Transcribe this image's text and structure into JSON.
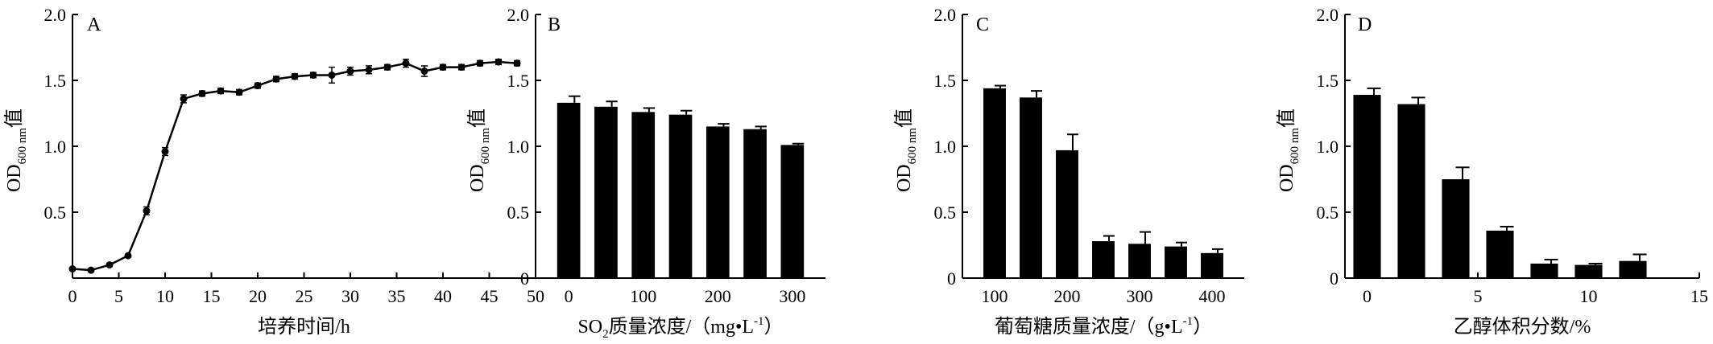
{
  "chart_data": [
    {
      "type": "line",
      "panel": "A",
      "xlabel": "培养时间/h",
      "ylabel": {
        "main": "OD",
        "sub": "600 nm",
        "suffix": "值"
      },
      "xlim": [
        0,
        50
      ],
      "ylim": [
        0,
        2.0
      ],
      "xticks": [
        0,
        5,
        10,
        15,
        20,
        25,
        30,
        35,
        40,
        45,
        50
      ],
      "yticks": [
        0.5,
        1.0,
        1.5,
        2.0
      ],
      "ytick_labels": [
        "0.5",
        "1.0",
        "1.5",
        "2.0"
      ],
      "x": [
        0,
        2,
        4,
        6,
        8,
        10,
        12,
        14,
        16,
        18,
        20,
        22,
        24,
        26,
        28,
        30,
        32,
        34,
        36,
        38,
        40,
        42,
        44,
        46,
        48
      ],
      "y": [
        0.07,
        0.06,
        0.1,
        0.17,
        0.51,
        0.96,
        1.36,
        1.4,
        1.42,
        1.41,
        1.46,
        1.51,
        1.53,
        1.54,
        1.54,
        1.57,
        1.58,
        1.6,
        1.63,
        1.57,
        1.6,
        1.6,
        1.63,
        1.64,
        1.63
      ],
      "err": [
        0.01,
        0.01,
        0.01,
        0.01,
        0.03,
        0.03,
        0.03,
        0.02,
        0.02,
        0.02,
        0.02,
        0.02,
        0.02,
        0.02,
        0.06,
        0.03,
        0.03,
        0.02,
        0.03,
        0.04,
        0.02,
        0.02,
        0.02,
        0.02,
        0.02
      ]
    },
    {
      "type": "bar",
      "panel": "B",
      "xlabel": {
        "pre": "SO",
        "sub": "2",
        "post": "质量浓度/（mg•L",
        "sup": "-1",
        "end": "）"
      },
      "ylabel": {
        "main": "OD",
        "sub": "600 nm",
        "suffix": "值"
      },
      "ylim": [
        0,
        2.0
      ],
      "yticks": [
        0,
        0.5,
        1.0,
        1.5,
        2.0
      ],
      "ytick_labels": [
        "0",
        "0.5",
        "1.0",
        "1.5",
        "2.0"
      ],
      "categories": [
        "0",
        "50",
        "100",
        "150",
        "200",
        "250",
        "300"
      ],
      "xtick_labels": [
        "0",
        "",
        "100",
        "",
        "200",
        "",
        "300"
      ],
      "values": [
        1.33,
        1.3,
        1.26,
        1.24,
        1.15,
        1.13,
        1.01
      ],
      "err": [
        0.05,
        0.04,
        0.03,
        0.03,
        0.02,
        0.02,
        0.01
      ]
    },
    {
      "type": "bar",
      "panel": "C",
      "xlabel": {
        "pre": "葡萄糖质量浓度/（g•L",
        "sup": "-1",
        "end": "）"
      },
      "ylabel": {
        "main": "OD",
        "sub": "600 nm",
        "suffix": "值"
      },
      "ylim": [
        0,
        2.0
      ],
      "yticks": [
        0,
        0.5,
        1.0,
        1.5,
        2.0
      ],
      "ytick_labels": [
        "0",
        "0.5",
        "1.0",
        "1.5",
        "2.0"
      ],
      "categories": [
        "100",
        "150",
        "200",
        "250",
        "300",
        "350",
        "400"
      ],
      "xtick_labels": [
        "100",
        "",
        "200",
        "",
        "300",
        "",
        "400"
      ],
      "values": [
        1.44,
        1.37,
        0.97,
        0.28,
        0.26,
        0.24,
        0.19
      ],
      "err": [
        0.02,
        0.05,
        0.12,
        0.04,
        0.09,
        0.03,
        0.03
      ]
    },
    {
      "type": "bar",
      "panel": "D",
      "xlabel": "乙醇体积分数/%",
      "ylabel": {
        "main": "OD",
        "sub": "600 nm",
        "suffix": "值"
      },
      "ylim": [
        0,
        2.0
      ],
      "xlim": [
        -1,
        15
      ],
      "xticks": [
        0,
        5,
        10,
        15
      ],
      "yticks": [
        0,
        0.5,
        1.0,
        1.5,
        2.0
      ],
      "ytick_labels": [
        "0",
        "0.5",
        "1.0",
        "1.5",
        "2.0"
      ],
      "x": [
        0,
        2,
        4,
        6,
        8,
        10,
        12
      ],
      "values": [
        1.39,
        1.32,
        0.75,
        0.36,
        0.11,
        0.1,
        0.13
      ],
      "err": [
        0.05,
        0.05,
        0.09,
        0.03,
        0.03,
        0.01,
        0.05
      ]
    }
  ]
}
